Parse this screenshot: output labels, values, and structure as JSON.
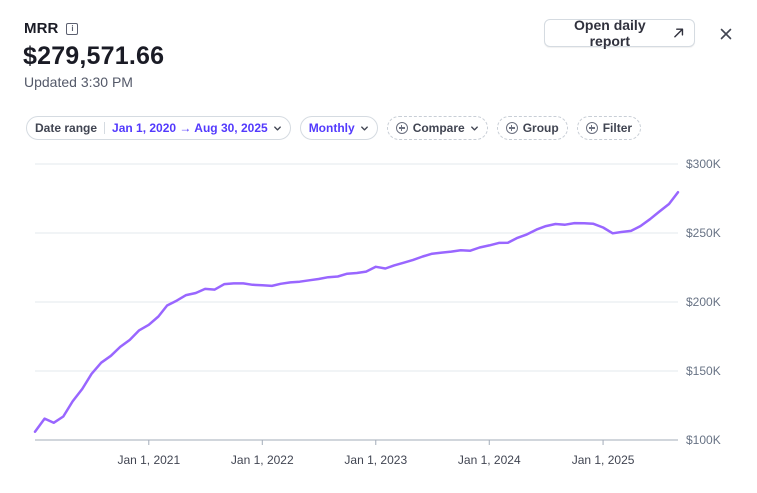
{
  "header": {
    "title": "MRR",
    "info_icon": "info-icon",
    "value": "$279,571.66",
    "updated": "Updated 3:30 PM"
  },
  "actions": {
    "open_report_label": "Open daily report",
    "open_report_icon": "arrow-up-right-icon",
    "close_icon": "close-icon"
  },
  "filters": {
    "date_range_label": "Date range",
    "date_range_value": "Jan 1, 2020 → Aug 30, 2025",
    "interval_value": "Monthly",
    "compare_label": "Compare",
    "group_label": "Group",
    "filter_label": "Filter"
  },
  "colors": {
    "accent": "#533afd",
    "line": "#9966ff",
    "grid": "#e3e8ee"
  },
  "chart_data": {
    "type": "line",
    "series": [
      {
        "color": "#9966ff",
        "points": [
          [
            "2020-01-01",
            106000
          ],
          [
            "2020-02-01",
            115500
          ],
          [
            "2020-03-01",
            112500
          ],
          [
            "2020-04-01",
            117000
          ],
          [
            "2020-05-01",
            128000
          ],
          [
            "2020-06-01",
            137000
          ],
          [
            "2020-07-01",
            148000
          ],
          [
            "2020-08-01",
            156000
          ],
          [
            "2020-09-01",
            161000
          ],
          [
            "2020-10-01",
            167500
          ],
          [
            "2020-11-01",
            172500
          ],
          [
            "2020-12-01",
            179500
          ],
          [
            "2021-01-01",
            183500
          ],
          [
            "2021-02-01",
            189500
          ],
          [
            "2021-03-01",
            197500
          ],
          [
            "2021-04-01",
            201000
          ],
          [
            "2021-05-01",
            205000
          ],
          [
            "2021-06-01",
            206500
          ],
          [
            "2021-07-01",
            209500
          ],
          [
            "2021-08-01",
            209000
          ],
          [
            "2021-09-01",
            213000
          ],
          [
            "2021-10-01",
            213500
          ],
          [
            "2021-11-01",
            213500
          ],
          [
            "2021-12-01",
            212500
          ],
          [
            "2022-01-01",
            212200
          ],
          [
            "2022-02-01",
            211700
          ],
          [
            "2022-03-01",
            213200
          ],
          [
            "2022-04-01",
            214200
          ],
          [
            "2022-05-01",
            214700
          ],
          [
            "2022-06-01",
            215700
          ],
          [
            "2022-07-01",
            216700
          ],
          [
            "2022-08-01",
            218000
          ],
          [
            "2022-09-01",
            218500
          ],
          [
            "2022-10-01",
            220500
          ],
          [
            "2022-11-01",
            221000
          ],
          [
            "2022-12-01",
            222000
          ],
          [
            "2023-01-01",
            225500
          ],
          [
            "2023-02-01",
            224300
          ],
          [
            "2023-03-01",
            226500
          ],
          [
            "2023-04-01",
            228500
          ],
          [
            "2023-05-01",
            230500
          ],
          [
            "2023-06-01",
            233000
          ],
          [
            "2023-07-01",
            235000
          ],
          [
            "2023-08-01",
            235800
          ],
          [
            "2023-09-01",
            236500
          ],
          [
            "2023-10-01",
            237500
          ],
          [
            "2023-11-01",
            237200
          ],
          [
            "2023-12-01",
            239500
          ],
          [
            "2024-01-01",
            241000
          ],
          [
            "2024-02-01",
            242800
          ],
          [
            "2024-03-01",
            243000
          ],
          [
            "2024-04-01",
            246500
          ],
          [
            "2024-05-01",
            249000
          ],
          [
            "2024-06-01",
            252500
          ],
          [
            "2024-07-01",
            255000
          ],
          [
            "2024-08-01",
            256500
          ],
          [
            "2024-09-01",
            256000
          ],
          [
            "2024-10-01",
            257200
          ],
          [
            "2024-11-01",
            257000
          ],
          [
            "2024-12-01",
            256700
          ],
          [
            "2025-01-01",
            254000
          ],
          [
            "2025-02-01",
            249800
          ],
          [
            "2025-03-01",
            250700
          ],
          [
            "2025-04-01",
            251500
          ],
          [
            "2025-05-01",
            255000
          ],
          [
            "2025-06-01",
            260000
          ],
          [
            "2025-07-01",
            265500
          ],
          [
            "2025-08-01",
            271000
          ],
          [
            "2025-08-30",
            279571.66
          ]
        ]
      }
    ],
    "x_ticks": [
      {
        "date": "2021-01-01",
        "label": "Jan 1, 2021"
      },
      {
        "date": "2022-01-01",
        "label": "Jan 1, 2022"
      },
      {
        "date": "2023-01-01",
        "label": "Jan 1, 2023"
      },
      {
        "date": "2024-01-01",
        "label": "Jan 1, 2024"
      },
      {
        "date": "2025-01-01",
        "label": "Jan 1, 2025"
      }
    ],
    "y_ticks": [
      {
        "value": 100000,
        "label": "$100K"
      },
      {
        "value": 150000,
        "label": "$150K"
      },
      {
        "value": 200000,
        "label": "$200K"
      },
      {
        "value": 250000,
        "label": "$250K"
      },
      {
        "value": 300000,
        "label": "$300K"
      }
    ],
    "xlim": [
      "2020-01-01",
      "2025-08-30"
    ],
    "ylim": [
      100000,
      300000
    ],
    "grid": true,
    "legend": "none"
  }
}
